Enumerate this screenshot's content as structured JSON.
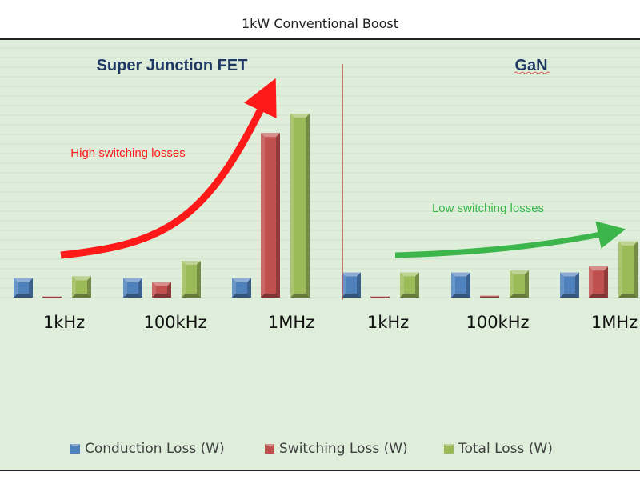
{
  "chart_data": {
    "type": "bar",
    "title": "1kW Conventional Boost",
    "panels": [
      {
        "name": "Super Junction FET",
        "categories": [
          "1kHz",
          "100kHz",
          "1MHz"
        ],
        "annotation": "High switching losses"
      },
      {
        "name": "GaN",
        "categories": [
          "1kHz",
          "100kHz",
          "1MHz"
        ],
        "annotation": "Low switching losses"
      }
    ],
    "series": [
      {
        "name": "Conduction Loss (W)",
        "color": "#4f81bd",
        "values": [
          [
            10,
            10,
            10
          ],
          [
            13,
            13,
            13
          ]
        ]
      },
      {
        "name": "Switching Loss (W)",
        "color": "#c0504d",
        "values": [
          [
            0.5,
            8,
            85
          ],
          [
            0,
            1,
            16
          ]
        ]
      },
      {
        "name": "Total Loss (W)",
        "color": "#9bbb59",
        "values": [
          [
            11,
            19,
            95
          ],
          [
            13,
            14,
            29
          ]
        ]
      }
    ],
    "ylim": [
      0,
      100
    ],
    "grid": true,
    "legend": "bottom",
    "colors": {
      "background": "#dfeedb",
      "high_arrow": "#ff1a1a",
      "low_arrow": "#3cb54a",
      "panel_title": "#1f3864",
      "divider": "#c0504d"
    }
  }
}
